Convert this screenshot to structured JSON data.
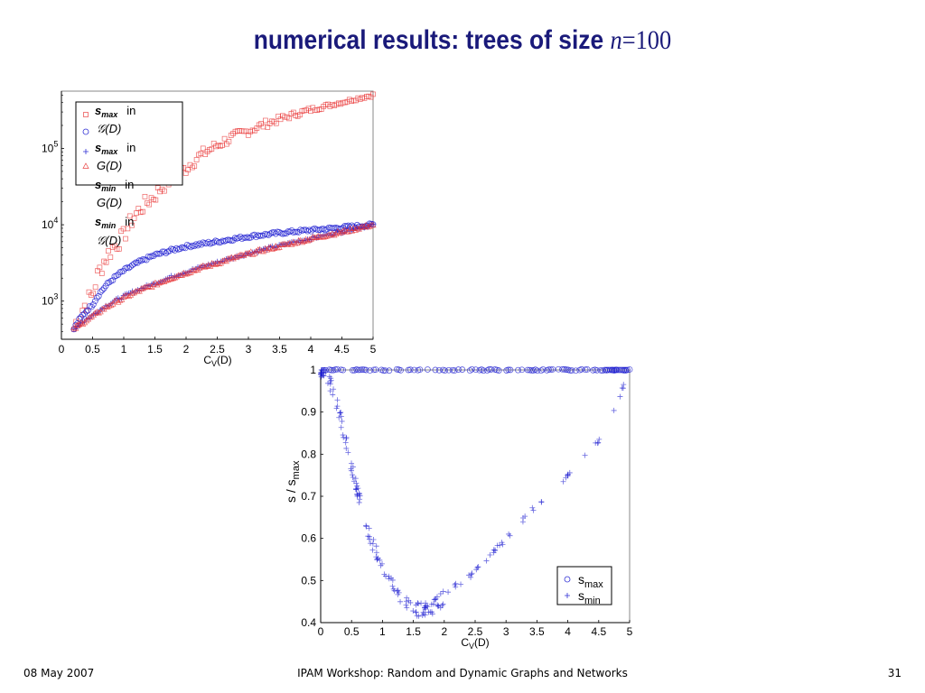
{
  "slide": {
    "title_text": "numerical results: trees of size ",
    "title_var": "n",
    "title_eq": "=100",
    "footer_date": "08 May 2007",
    "footer_center": "IPAM Workshop: Random and Dynamic Graphs and Networks",
    "footer_page": "31"
  },
  "colors": {
    "title": "#1a1a7a",
    "red": "#e83030",
    "blue": "#1a1ad0"
  },
  "chart_data": [
    {
      "type": "scatter",
      "title": "",
      "xlabel": "C",
      "xlabel_sub": "V",
      "xlabel_tail": "(D)",
      "ylabel": "",
      "xlim": [
        0,
        5
      ],
      "ylim_log10": [
        2.5,
        5.75
      ],
      "yscale": "log",
      "xticks": [
        "0",
        "0.5",
        "1",
        "1.5",
        "2",
        "2.5",
        "3",
        "3.5",
        "4",
        "4.5",
        "5"
      ],
      "yticks": [
        {
          "base": "10",
          "exp": "3",
          "value": 1000
        },
        {
          "base": "10",
          "exp": "4",
          "value": 10000
        },
        {
          "base": "10",
          "exp": "5",
          "value": 100000
        }
      ],
      "legend_position": "top-left",
      "legend": [
        {
          "var": "s",
          "sub": "max",
          "in": "in",
          "graph": "𝒢(D)",
          "marker": "square",
          "color": "#e83030"
        },
        {
          "var": "",
          "sub": "",
          "in": "",
          "graph": "",
          "marker": "circle",
          "color": "#1a1ad0"
        },
        {
          "var": "s",
          "sub": "max",
          "in": "in",
          "graph": "G(D)",
          "marker": "plus",
          "color": "#1a1ad0"
        },
        {
          "var": "s",
          "sub": "min",
          "in": "in",
          "graph": "G(D)",
          "marker": "triangle",
          "color": "#e83030"
        },
        {
          "var": "s",
          "sub": "min",
          "in": "in",
          "graph": "𝒢(D)",
          "marker": "",
          "color": ""
        }
      ],
      "series": [
        {
          "marker": "square",
          "color": "#e83030",
          "x": [
            0.2,
            0.5,
            1.0,
            1.5,
            2.0,
            2.5,
            3.0,
            3.5,
            4.0,
            4.5,
            5.0
          ],
          "y": [
            430,
            1200,
            7000,
            24000,
            55000,
            110000,
            170000,
            240000,
            320000,
            400000,
            500000
          ]
        },
        {
          "marker": "circle",
          "color": "#1a1ad0",
          "x": [
            0.2,
            0.5,
            1.0,
            1.5,
            2.0,
            2.5,
            3.0,
            3.5,
            4.0,
            4.5,
            5.0
          ],
          "y": [
            430,
            900,
            2500,
            4000,
            5200,
            6000,
            7000,
            7800,
            8500,
            9200,
            10000
          ]
        },
        {
          "marker": "plus",
          "color": "#1a1ad0",
          "x": [
            0.2,
            0.5,
            1.0,
            1.5,
            2.0,
            2.5,
            3.0,
            3.5,
            4.0,
            4.5,
            5.0
          ],
          "y": [
            430,
            650,
            1150,
            1700,
            2400,
            3200,
            4200,
            5300,
            6600,
            8100,
            10000
          ]
        },
        {
          "marker": "triangle",
          "color": "#e83030",
          "x": [
            0.2,
            0.5,
            1.0,
            1.5,
            2.0,
            2.5,
            3.0,
            3.5,
            4.0,
            4.5,
            5.0
          ],
          "y": [
            430,
            630,
            1100,
            1650,
            2350,
            3150,
            4150,
            5250,
            6550,
            8050,
            10000
          ]
        }
      ]
    },
    {
      "type": "scatter",
      "title": "",
      "xlabel": "C",
      "xlabel_sub": "V",
      "xlabel_tail": "(D)",
      "ylabel": "s / s",
      "ylabel_sub": "max",
      "xlim": [
        0,
        5
      ],
      "ylim": [
        0.4,
        1
      ],
      "xticks": [
        "0",
        "0.5",
        "1",
        "1.5",
        "2",
        "2.5",
        "3",
        "3.5",
        "4",
        "4.5",
        "5"
      ],
      "yticks": [
        "0.4",
        "0.5",
        "0.6",
        "0.7",
        "0.8",
        "0.9",
        "1"
      ],
      "legend_position": "bottom-right",
      "legend": [
        {
          "label": "s",
          "sub": "max",
          "marker": "circle",
          "color": "#1a1ad0"
        },
        {
          "label": "s",
          "sub": "min",
          "marker": "plus",
          "color": "#1a1ad0"
        }
      ],
      "series": [
        {
          "marker": "circle",
          "color": "#1a1ad0",
          "x": [
            0.05,
            0.3,
            0.6,
            1.0,
            1.5,
            2.0,
            2.5,
            3.0,
            3.5,
            4.0,
            4.5,
            5.0
          ],
          "y": [
            1,
            1,
            1,
            1,
            1,
            1,
            1,
            1,
            1,
            1,
            1,
            1
          ]
        },
        {
          "marker": "plus",
          "color": "#1a1ad0",
          "x": [
            0.05,
            0.15,
            0.3,
            0.5,
            0.75,
            1.0,
            1.25,
            1.5,
            1.75,
            2.0,
            2.5,
            3.0,
            3.5,
            4.0,
            4.5,
            4.8,
            5.0
          ],
          "y": [
            1.0,
            0.97,
            0.9,
            0.77,
            0.62,
            0.53,
            0.47,
            0.43,
            0.43,
            0.46,
            0.52,
            0.6,
            0.68,
            0.75,
            0.83,
            0.92,
            1.0
          ]
        }
      ]
    }
  ]
}
